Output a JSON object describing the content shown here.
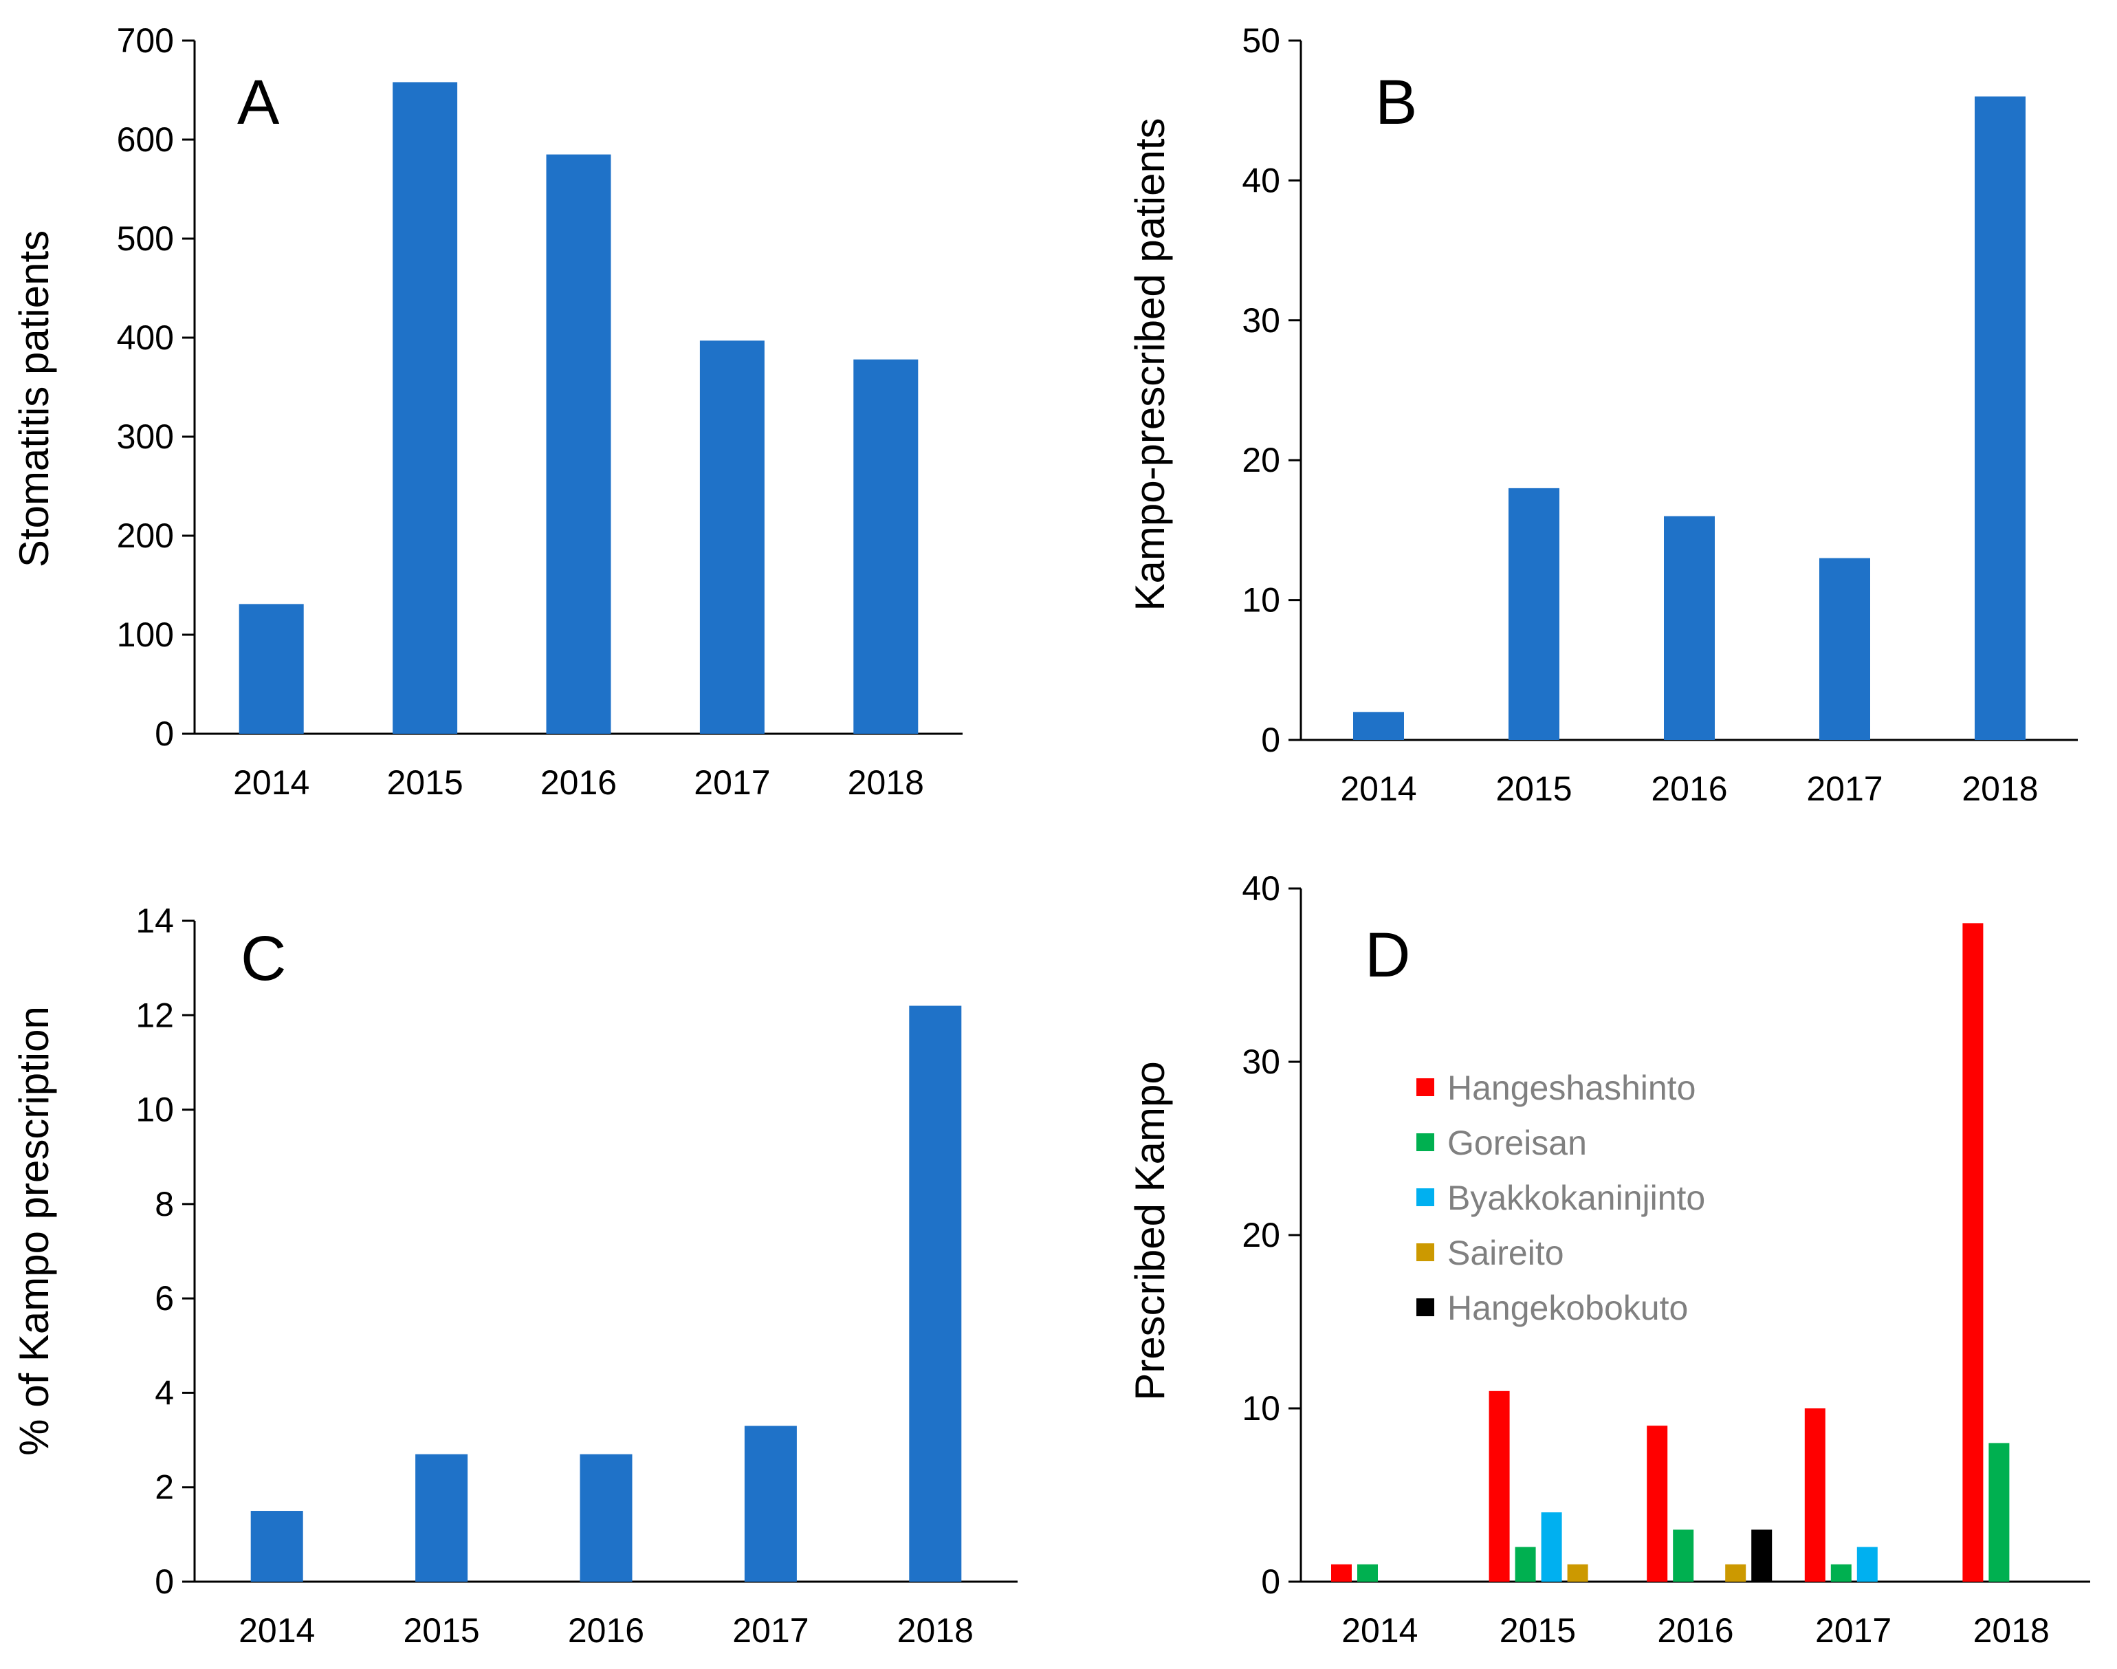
{
  "colors": {
    "bar": "#1F72C8",
    "axis": "#000000",
    "Hangeshashinto": "#FF0000",
    "Goreisan": "#00B050",
    "Byakkokaninjinto": "#00B0F0",
    "Saireito": "#CC9900",
    "Hangekobokuto": "#000000",
    "legend_text": "#808080"
  },
  "chart_data": [
    {
      "id": "A",
      "type": "bar",
      "panel_label": "A",
      "categories": [
        "2014",
        "2015",
        "2016",
        "2017",
        "2018"
      ],
      "values": [
        131,
        658,
        585,
        397,
        378
      ],
      "ylabel": "Stomatitis patients",
      "xlabel": "",
      "ylim": [
        0,
        700
      ],
      "yticks": [
        0,
        100,
        200,
        300,
        400,
        500,
        600,
        700
      ]
    },
    {
      "id": "B",
      "type": "bar",
      "panel_label": "B",
      "categories": [
        "2014",
        "2015",
        "2016",
        "2017",
        "2018"
      ],
      "values": [
        2,
        18,
        16,
        13,
        46
      ],
      "ylabel": "Kampo-prescribed patients",
      "xlabel": "",
      "ylim": [
        0,
        50
      ],
      "yticks": [
        0,
        10,
        20,
        30,
        40,
        50
      ]
    },
    {
      "id": "C",
      "type": "bar",
      "panel_label": "C",
      "categories": [
        "2014",
        "2015",
        "2016",
        "2017",
        "2018"
      ],
      "values": [
        1.5,
        2.7,
        2.7,
        3.3,
        12.2
      ],
      "ylabel": "% of Kampo prescription",
      "xlabel": "",
      "ylim": [
        0,
        14
      ],
      "yticks": [
        0,
        2,
        4,
        6,
        8,
        10,
        12,
        14
      ]
    },
    {
      "id": "D",
      "type": "bar",
      "panel_label": "D",
      "categories": [
        "2014",
        "2015",
        "2016",
        "2017",
        "2018"
      ],
      "series": [
        {
          "name": "Hangeshashinto",
          "values": [
            1,
            11,
            9,
            10,
            38
          ]
        },
        {
          "name": "Goreisan",
          "values": [
            1,
            2,
            3,
            1,
            8
          ]
        },
        {
          "name": "Byakkokaninjinto",
          "values": [
            0,
            4,
            0,
            2,
            0
          ]
        },
        {
          "name": "Saireito",
          "values": [
            0,
            1,
            1,
            0,
            0
          ]
        },
        {
          "name": "Hangekobokuto",
          "values": [
            0,
            0,
            3,
            0,
            0
          ]
        }
      ],
      "ylabel": "Prescribed Kampo",
      "xlabel": "",
      "ylim": [
        0,
        40
      ],
      "yticks": [
        0,
        10,
        20,
        30,
        40
      ],
      "legend_position": "upper-left"
    }
  ]
}
